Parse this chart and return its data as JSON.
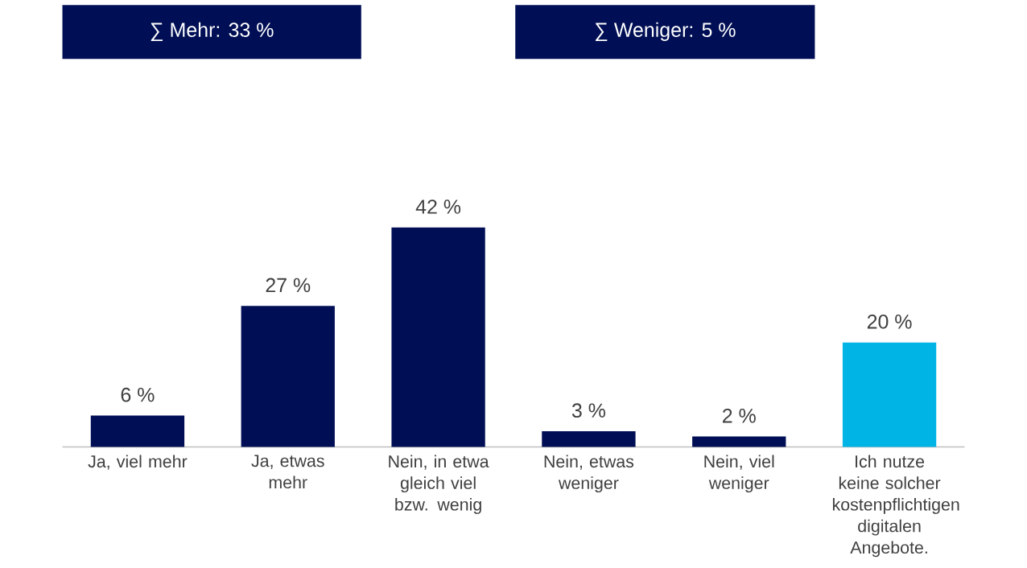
{
  "chart_data": {
    "type": "bar",
    "categories": [
      "Ja, viel mehr",
      "Ja, etwas mehr",
      "Nein, in etwa gleich viel bzw. wenig",
      "Nein, etwas weniger",
      "Nein, viel weniger",
      "Ich nutze keine solcher kostenpflichtigen digitalen Angebote."
    ],
    "values": [
      6,
      27,
      42,
      3,
      2,
      20
    ],
    "value_labels": [
      "6 %",
      "27 %",
      "42 %",
      "3 %",
      "2 %",
      "20 %"
    ],
    "colors": [
      "#000f55",
      "#000f55",
      "#000f55",
      "#000f55",
      "#000f55",
      "#00b4e6"
    ],
    "annotations": [
      "∑ Mehr: 33 %",
      "∑ Weniger: 5 %"
    ]
  }
}
